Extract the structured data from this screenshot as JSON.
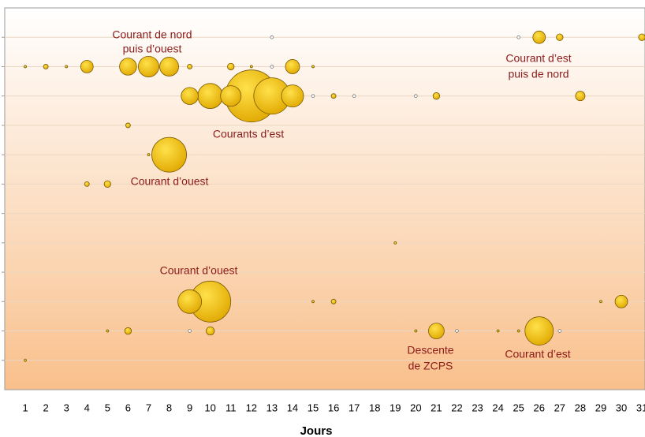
{
  "chart_data": {
    "type": "bubble",
    "x_label": "Jours",
    "xlim": [
      0,
      31.15
    ],
    "ylim": [
      0,
      13
    ],
    "xticks": [
      1,
      2,
      3,
      4,
      5,
      6,
      7,
      8,
      9,
      10,
      11,
      12,
      13,
      14,
      15,
      16,
      17,
      18,
      19,
      20,
      21,
      22,
      23,
      24,
      25,
      26,
      27,
      28,
      29,
      30,
      31
    ],
    "yticks": [
      1,
      2,
      3,
      4,
      5,
      6,
      7,
      8,
      9,
      10,
      11,
      12
    ],
    "grid": true,
    "series": [
      {
        "color": "#f2c200",
        "x": [
          26,
          27,
          31,
          1,
          2,
          3,
          4,
          6,
          7,
          8,
          9,
          11,
          12,
          14,
          15,
          9,
          10,
          11,
          12,
          13,
          14,
          16,
          21,
          28,
          6,
          7,
          8,
          4,
          5,
          19,
          9,
          10,
          15,
          16,
          29,
          30,
          5,
          6,
          10,
          20,
          21,
          24,
          25,
          26,
          1
        ],
        "y": [
          12,
          12,
          12,
          11,
          11,
          11,
          11,
          11,
          11,
          11,
          11,
          11,
          11,
          11,
          11,
          10,
          10,
          10,
          10,
          10,
          10,
          10,
          10,
          10,
          9,
          8,
          8,
          7,
          7,
          5,
          3,
          3,
          3,
          3,
          3,
          3,
          2,
          2,
          2,
          2,
          2,
          2,
          2,
          2,
          1
        ],
        "size": [
          7,
          2,
          2,
          0.25,
          1,
          0.25,
          7,
          13,
          19,
          16,
          1,
          2,
          0.25,
          9,
          0.25,
          13,
          28,
          19,
          121,
          59,
          22,
          1,
          2,
          4,
          1,
          0.25,
          54,
          1,
          2,
          0.25,
          25,
          75,
          0.25,
          1,
          0.25,
          7,
          0.25,
          2,
          3,
          0.25,
          11,
          0.25,
          0.25,
          36,
          0.25
        ]
      },
      {
        "color": "#ffffff",
        "x": [
          13,
          25,
          13,
          15,
          17,
          20,
          9,
          22,
          27
        ],
        "y": [
          12,
          12,
          11,
          10,
          10,
          10,
          2,
          2,
          2
        ],
        "size": [
          0.4,
          0.4,
          0.4,
          0.4,
          0.4,
          0.4,
          0.4,
          0.4,
          0.4
        ]
      }
    ],
    "annotations": [
      "Courant de nord",
      "puis d’ouest",
      "Courant d’est",
      "puis de nord",
      "Courants d’est",
      "Courant d’ouest",
      "Courant d’ouest",
      "Descente",
      "de ZCPS",
      "Courant d’est"
    ]
  }
}
